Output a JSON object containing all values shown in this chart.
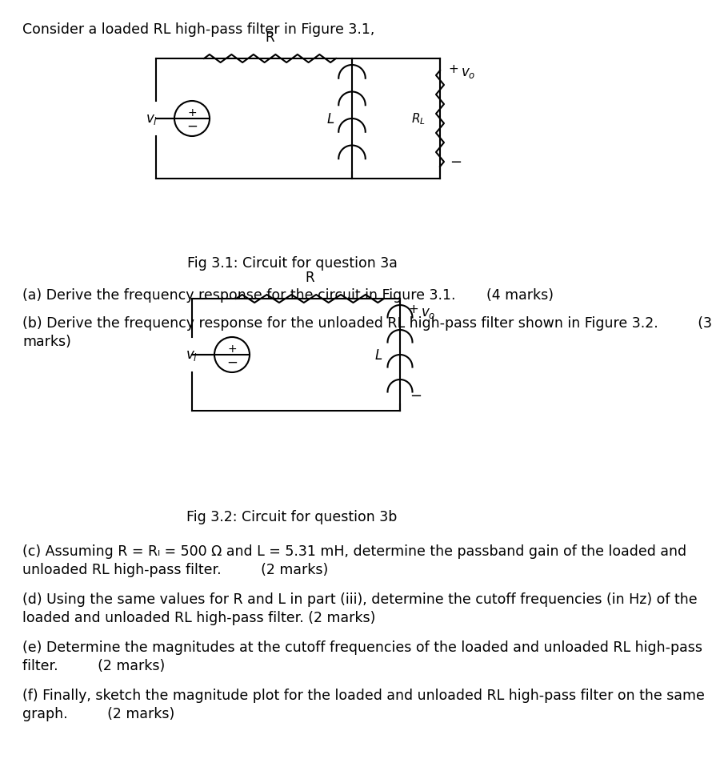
{
  "title_text": "Consider a loaded RL high-pass filter in Figure 3.1,",
  "fig31_caption": "Fig 3.1: Circuit for question 3a",
  "fig32_caption": "Fig 3.2: Circuit for question 3b",
  "question_a": "(a) Derive the frequency response for the circuit in Figure 3.1.       (4 marks)",
  "question_b_line1": "(b) Derive the frequency response for the unloaded RL high-pass filter shown in Figure 3.2.         (3",
  "question_b_line2": "marks)",
  "question_c_line1": "(c) Assuming R = Rₗ = 500 Ω and L = 5.31 mH, determine the passband gain of the loaded and",
  "question_c_line2": "unloaded RL high-pass filter.         (2 marks)",
  "question_d_line1": "(d) Using the same values for R and L in part (iii), determine the cutoff frequencies (in Hz) of the",
  "question_d_line2": "loaded and unloaded RL high-pass filter. (2 marks)",
  "question_e_line1": "(e) Determine the magnitudes at the cutoff frequencies of the loaded and unloaded RL high-pass",
  "question_e_line2": "filter.         (2 marks)",
  "question_f_line1": "(f) Finally, sketch the magnitude plot for the loaded and unloaded RL high-pass filter on the same",
  "question_f_line2": "graph.         (2 marks)",
  "background_color": "#ffffff",
  "text_color": "#000000",
  "font_size": 11.5,
  "lw": 1.5
}
